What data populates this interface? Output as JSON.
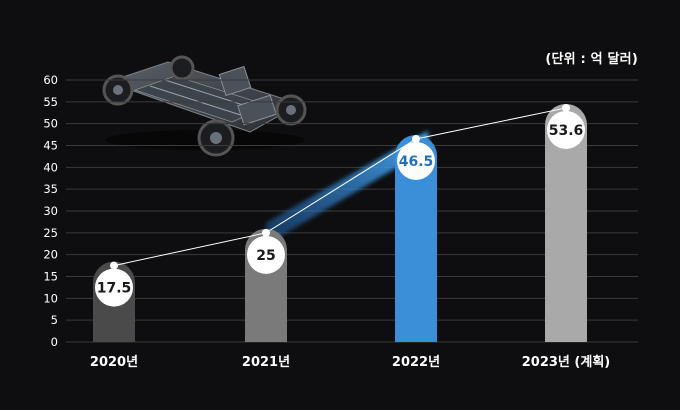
{
  "chart_data": {
    "type": "bar",
    "unit_label": "(단위 : 억 달러)",
    "categories": [
      "2020년",
      "2021년",
      "2022년",
      "2023년 (계획)"
    ],
    "values": [
      17.5,
      25,
      46.5,
      53.6
    ],
    "value_labels": [
      "17.5",
      "25",
      "46.5",
      "53.6"
    ],
    "ylim": [
      0,
      60
    ],
    "yticks": [
      0,
      5,
      10,
      15,
      20,
      25,
      30,
      35,
      40,
      45,
      50,
      55,
      60
    ],
    "grid": true,
    "highlight_index": 2,
    "trend_line": true
  },
  "colors": {
    "background": "#0e0e10",
    "bar_colors": [
      "#4a4a4a",
      "#7a7a7a",
      "#3a8fd8",
      "#a9a9a9"
    ],
    "highlight_text": "#1f6fb8",
    "label_text": "#1a1a1a",
    "grid": "#3a3a3a",
    "axis_text": "#ffffff"
  },
  "illustration": {
    "icon": "ev-platform-chassis-icon"
  }
}
